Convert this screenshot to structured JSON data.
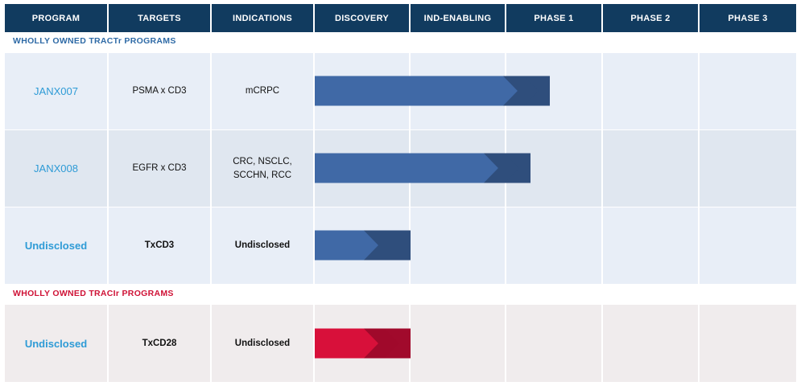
{
  "header": {
    "columns": [
      "PROGRAM",
      "TARGETS",
      "INDICATIONS",
      "DISCOVERY",
      "IND-ENABLING",
      "PHASE 1",
      "PHASE 2",
      "PHASE 3"
    ]
  },
  "sections": [
    {
      "label": "WHOLLY OWNED TRACTr PROGRAMS",
      "color": "#2e6aa6"
    },
    {
      "label": "WHOLLY OWNED TRACIr PROGRAMS",
      "color": "#cf1236"
    }
  ],
  "rows": [
    {
      "program": "JANX007",
      "targets": "PSMA x CD3",
      "indications": "mCRPC"
    },
    {
      "program": "JANX008",
      "targets": "EGFR x CD3",
      "indications": "CRC, NSCLC, SCCHN, RCC"
    },
    {
      "program": "Undisclosed",
      "targets": "TxCD3",
      "indications": "Undisclosed"
    },
    {
      "program": "Undisclosed",
      "targets": "TxCD28",
      "indications": "Undisclosed"
    }
  ],
  "colors": {
    "header_bg": "#113b5f",
    "tractr_bar": "#4069a6",
    "tractr_bar_tip": "#2f4e7c",
    "tracir_bar": "#d8103a",
    "tracir_bar_tip": "#a10a2c",
    "program_text": "#2e9bd6"
  },
  "chart_data": {
    "type": "bar",
    "orientation": "horizontal",
    "stages": [
      "DISCOVERY",
      "IND-ENABLING",
      "PHASE 1",
      "PHASE 2",
      "PHASE 3"
    ],
    "series": [
      {
        "name": "WHOLLY OWNED TRACTr PROGRAMS",
        "programs": [
          "JANX007",
          "JANX008",
          "Undisclosed"
        ],
        "progress_stages": [
          2.45,
          2.25,
          1.0
        ]
      },
      {
        "name": "WHOLLY OWNED TRACIr PROGRAMS",
        "programs": [
          "Undisclosed"
        ],
        "progress_stages": [
          1.0
        ]
      }
    ],
    "xlim": [
      0,
      5
    ],
    "grid": true,
    "legend": "none"
  }
}
